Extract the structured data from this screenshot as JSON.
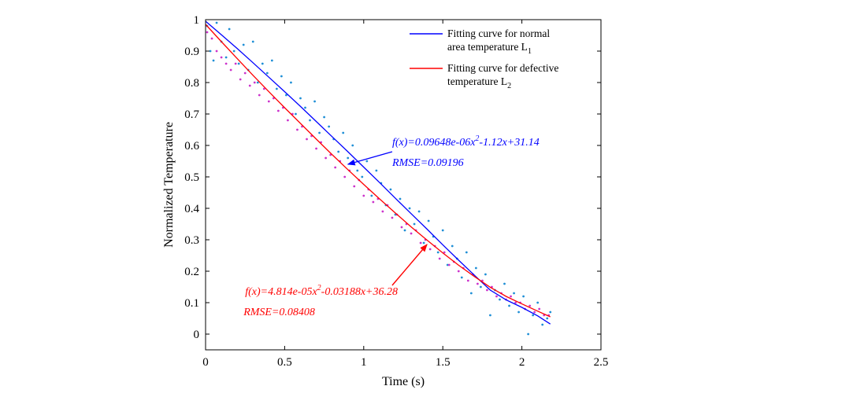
{
  "chart_data": {
    "type": "scatter",
    "xlabel": "Time (s)",
    "ylabel": "Normalized Temperature",
    "xlim": [
      0,
      2.5
    ],
    "ylim": [
      -0.05,
      1
    ],
    "xticks": [
      0,
      0.5,
      1,
      1.5,
      2,
      2.5
    ],
    "xtick_labels": [
      "0",
      "0.5",
      "1",
      "1.5",
      "2",
      "2.5"
    ],
    "yticks": [
      0,
      0.1,
      0.2,
      0.3,
      0.4,
      0.5,
      0.6,
      0.7,
      0.8,
      0.9,
      1
    ],
    "ytick_labels": [
      "0",
      "0.1",
      "0.2",
      "0.3",
      "0.4",
      "0.5",
      "0.6",
      "0.7",
      "0.8",
      "0.9",
      "1"
    ],
    "grid": false,
    "legend_position": "top-right",
    "legend": [
      {
        "line1": "Fitting curve for normal",
        "line2": "area temperature L",
        "sub": "1",
        "color": "#0000ff"
      },
      {
        "line1": "Fitting curve for defective",
        "line2": "temperature L",
        "sub": "2",
        "color": "#ff0000"
      }
    ],
    "fit_curves": [
      {
        "color": "#0000ff",
        "points": [
          [
            0,
            0.995
          ],
          [
            0.1,
            0.952
          ],
          [
            0.2,
            0.908
          ],
          [
            0.3,
            0.863
          ],
          [
            0.4,
            0.817
          ],
          [
            0.5,
            0.771
          ],
          [
            0.6,
            0.724
          ],
          [
            0.7,
            0.676
          ],
          [
            0.8,
            0.628
          ],
          [
            0.9,
            0.58
          ],
          [
            1.0,
            0.531
          ],
          [
            1.1,
            0.482
          ],
          [
            1.2,
            0.432
          ],
          [
            1.3,
            0.383
          ],
          [
            1.4,
            0.334
          ],
          [
            1.5,
            0.284
          ],
          [
            1.6,
            0.235
          ],
          [
            1.7,
            0.187
          ],
          [
            1.8,
            0.14
          ],
          [
            1.9,
            0.109
          ],
          [
            2.0,
            0.085
          ],
          [
            2.1,
            0.058
          ],
          [
            2.18,
            0.032
          ]
        ]
      },
      {
        "color": "#ff0000",
        "points": [
          [
            0,
            0.985
          ],
          [
            0.1,
            0.93
          ],
          [
            0.2,
            0.876
          ],
          [
            0.3,
            0.823
          ],
          [
            0.4,
            0.771
          ],
          [
            0.5,
            0.72
          ],
          [
            0.6,
            0.67
          ],
          [
            0.7,
            0.62
          ],
          [
            0.8,
            0.571
          ],
          [
            0.9,
            0.523
          ],
          [
            1.0,
            0.476
          ],
          [
            1.1,
            0.43
          ],
          [
            1.2,
            0.385
          ],
          [
            1.3,
            0.341
          ],
          [
            1.4,
            0.299
          ],
          [
            1.5,
            0.258
          ],
          [
            1.6,
            0.219
          ],
          [
            1.7,
            0.183
          ],
          [
            1.8,
            0.149
          ],
          [
            1.9,
            0.12
          ],
          [
            2.0,
            0.096
          ],
          [
            2.1,
            0.073
          ],
          [
            2.18,
            0.055
          ]
        ]
      }
    ],
    "scatter_series": [
      {
        "color": "#1f8fd6",
        "points": [
          [
            0.01,
            0.98
          ],
          [
            0.03,
            0.9
          ],
          [
            0.05,
            0.87
          ],
          [
            0.07,
            0.99
          ],
          [
            0.1,
            0.93
          ],
          [
            0.13,
            0.88
          ],
          [
            0.15,
            0.97
          ],
          [
            0.18,
            0.9
          ],
          [
            0.21,
            0.86
          ],
          [
            0.24,
            0.92
          ],
          [
            0.27,
            0.84
          ],
          [
            0.3,
            0.93
          ],
          [
            0.33,
            0.8
          ],
          [
            0.36,
            0.86
          ],
          [
            0.39,
            0.83
          ],
          [
            0.42,
            0.87
          ],
          [
            0.45,
            0.78
          ],
          [
            0.48,
            0.82
          ],
          [
            0.51,
            0.76
          ],
          [
            0.54,
            0.8
          ],
          [
            0.57,
            0.7
          ],
          [
            0.6,
            0.75
          ],
          [
            0.63,
            0.72
          ],
          [
            0.66,
            0.68
          ],
          [
            0.69,
            0.74
          ],
          [
            0.72,
            0.64
          ],
          [
            0.75,
            0.69
          ],
          [
            0.78,
            0.66
          ],
          [
            0.81,
            0.62
          ],
          [
            0.84,
            0.58
          ],
          [
            0.87,
            0.64
          ],
          [
            0.9,
            0.56
          ],
          [
            0.93,
            0.6
          ],
          [
            0.96,
            0.52
          ],
          [
            0.99,
            0.5
          ],
          [
            1.02,
            0.55
          ],
          [
            1.05,
            0.44
          ],
          [
            1.08,
            0.52
          ],
          [
            1.11,
            0.48
          ],
          [
            1.14,
            0.41
          ],
          [
            1.17,
            0.46
          ],
          [
            1.2,
            0.38
          ],
          [
            1.23,
            0.43
          ],
          [
            1.26,
            0.33
          ],
          [
            1.29,
            0.4
          ],
          [
            1.32,
            0.35
          ],
          [
            1.35,
            0.39
          ],
          [
            1.38,
            0.29
          ],
          [
            1.41,
            0.36
          ],
          [
            1.44,
            0.31
          ],
          [
            1.47,
            0.26
          ],
          [
            1.5,
            0.33
          ],
          [
            1.53,
            0.22
          ],
          [
            1.56,
            0.28
          ],
          [
            1.59,
            0.24
          ],
          [
            1.62,
            0.18
          ],
          [
            1.65,
            0.26
          ],
          [
            1.68,
            0.13
          ],
          [
            1.71,
            0.21
          ],
          [
            1.74,
            0.15
          ],
          [
            1.77,
            0.19
          ],
          [
            1.8,
            0.06
          ],
          [
            1.83,
            0.14
          ],
          [
            1.86,
            0.11
          ],
          [
            1.89,
            0.16
          ],
          [
            1.92,
            0.09
          ],
          [
            1.95,
            0.13
          ],
          [
            1.98,
            0.07
          ],
          [
            2.01,
            0.12
          ],
          [
            2.04,
            0.0
          ],
          [
            2.07,
            0.06
          ],
          [
            2.1,
            0.1
          ],
          [
            2.13,
            0.03
          ],
          [
            2.16,
            0.05
          ],
          [
            2.18,
            0.07
          ]
        ]
      },
      {
        "color": "#cc33cc",
        "points": [
          [
            0.01,
            0.96
          ],
          [
            0.04,
            0.94
          ],
          [
            0.07,
            0.9
          ],
          [
            0.1,
            0.88
          ],
          [
            0.13,
            0.86
          ],
          [
            0.16,
            0.84
          ],
          [
            0.19,
            0.86
          ],
          [
            0.22,
            0.81
          ],
          [
            0.25,
            0.83
          ],
          [
            0.28,
            0.79
          ],
          [
            0.31,
            0.8
          ],
          [
            0.34,
            0.76
          ],
          [
            0.37,
            0.78
          ],
          [
            0.4,
            0.74
          ],
          [
            0.43,
            0.75
          ],
          [
            0.46,
            0.71
          ],
          [
            0.49,
            0.72
          ],
          [
            0.52,
            0.68
          ],
          [
            0.55,
            0.7
          ],
          [
            0.58,
            0.65
          ],
          [
            0.61,
            0.66
          ],
          [
            0.64,
            0.62
          ],
          [
            0.67,
            0.63
          ],
          [
            0.7,
            0.59
          ],
          [
            0.73,
            0.61
          ],
          [
            0.76,
            0.56
          ],
          [
            0.79,
            0.57
          ],
          [
            0.82,
            0.53
          ],
          [
            0.85,
            0.55
          ],
          [
            0.88,
            0.5
          ],
          [
            0.91,
            0.52
          ],
          [
            0.94,
            0.47
          ],
          [
            0.97,
            0.49
          ],
          [
            1.0,
            0.44
          ],
          [
            1.03,
            0.46
          ],
          [
            1.06,
            0.42
          ],
          [
            1.09,
            0.43
          ],
          [
            1.12,
            0.39
          ],
          [
            1.15,
            0.41
          ],
          [
            1.18,
            0.37
          ],
          [
            1.21,
            0.38
          ],
          [
            1.24,
            0.34
          ],
          [
            1.27,
            0.35
          ],
          [
            1.3,
            0.32
          ],
          [
            1.33,
            0.33
          ],
          [
            1.36,
            0.29
          ],
          [
            1.39,
            0.3
          ],
          [
            1.42,
            0.27
          ],
          [
            1.45,
            0.28
          ],
          [
            1.48,
            0.24
          ],
          [
            1.51,
            0.26
          ],
          [
            1.54,
            0.22
          ],
          [
            1.57,
            0.23
          ],
          [
            1.6,
            0.2
          ],
          [
            1.63,
            0.21
          ],
          [
            1.66,
            0.17
          ],
          [
            1.69,
            0.19
          ],
          [
            1.72,
            0.16
          ],
          [
            1.75,
            0.17
          ],
          [
            1.78,
            0.14
          ],
          [
            1.81,
            0.15
          ],
          [
            1.84,
            0.12
          ],
          [
            1.87,
            0.13
          ],
          [
            1.9,
            0.11
          ],
          [
            1.93,
            0.12
          ],
          [
            1.96,
            0.1
          ],
          [
            1.99,
            0.1
          ],
          [
            2.02,
            0.08
          ],
          [
            2.05,
            0.09
          ],
          [
            2.08,
            0.07
          ],
          [
            2.11,
            0.08
          ],
          [
            2.14,
            0.06
          ],
          [
            2.17,
            0.06
          ]
        ]
      }
    ],
    "annotations": [
      {
        "color": "#0000ff",
        "eq_parts": [
          "f(x)=0.09648e-06x",
          "2",
          "-1.12x+31.14"
        ],
        "rmse": "RMSE=0.09196",
        "text_at": [
          1.18,
          0.6
        ],
        "rmse_at": [
          1.18,
          0.535
        ],
        "arrow_from": [
          1.18,
          0.58
        ],
        "arrow_to": [
          0.9,
          0.54
        ]
      },
      {
        "color": "#ff0000",
        "eq_parts": [
          "f(x)=4.814e-05x",
          "2",
          "-0.03188x+36.28"
        ],
        "rmse": "RMSE=0.08408",
        "text_at": [
          0.25,
          0.125
        ],
        "rmse_at": [
          0.24,
          0.06
        ],
        "arrow_from": [
          1.18,
          0.155
        ],
        "arrow_to": [
          1.4,
          0.285
        ]
      }
    ]
  }
}
